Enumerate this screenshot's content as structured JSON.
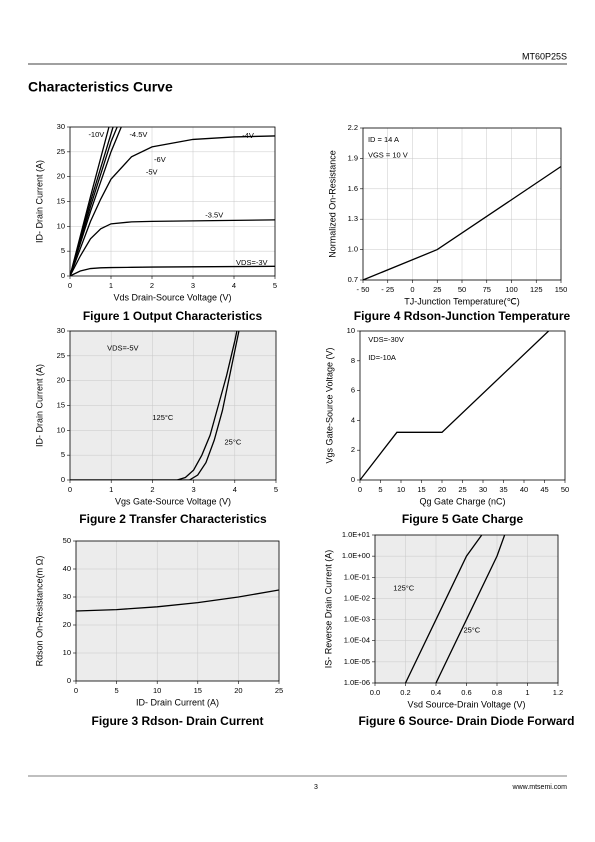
{
  "header": {
    "part": "MT60P25S",
    "section": "Characteristics Curve"
  },
  "footer": {
    "page": "3",
    "url": "www.mtsemi.com"
  },
  "chart_data": [
    {
      "type": "line",
      "title": "Figure 1 Output Characteristics",
      "xlabel": "Vds Drain-Source Voltage (V)",
      "ylabel": "ID- Drain Current (A)",
      "xlim": [
        0,
        5
      ],
      "ylim": [
        0,
        30
      ],
      "xticks": [
        0,
        1,
        2,
        3,
        4,
        5
      ],
      "yticks": [
        0,
        5,
        10,
        15,
        20,
        25,
        30
      ],
      "grid": true,
      "background": "#ffffff",
      "series": [
        {
          "name": "VDS=-3V",
          "color": "#000000",
          "x": [
            0,
            0.25,
            0.5,
            0.75,
            1,
            1.5,
            2,
            3,
            4,
            5
          ],
          "values": [
            0,
            1.0,
            1.5,
            1.65,
            1.7,
            1.75,
            1.8,
            1.85,
            1.9,
            1.95
          ]
        },
        {
          "name": "-3.5V",
          "color": "#000000",
          "x": [
            0,
            0.25,
            0.5,
            0.75,
            1,
            1.5,
            2,
            3,
            4,
            5
          ],
          "values": [
            0,
            4,
            7.5,
            9.5,
            10.5,
            10.9,
            11,
            11.1,
            11.2,
            11.3
          ]
        },
        {
          "name": "-4V",
          "color": "#000000",
          "x": [
            0,
            0.25,
            0.5,
            0.75,
            1,
            1.5,
            2,
            3,
            4,
            5
          ],
          "values": [
            0,
            5.5,
            11,
            15.5,
            19.5,
            24,
            26,
            27.5,
            28,
            28.2
          ]
        },
        {
          "name": "-4.5V",
          "color": "#000000",
          "x": [
            0,
            0.5,
            1,
            1.25
          ],
          "values": [
            0,
            13,
            25,
            30
          ]
        },
        {
          "name": "-5V",
          "color": "#000000",
          "x": [
            0,
            0.5,
            1,
            1.15
          ],
          "values": [
            0,
            14,
            27,
            30
          ]
        },
        {
          "name": "-6V",
          "color": "#000000",
          "x": [
            0,
            0.5,
            1.05
          ],
          "values": [
            0,
            15,
            30
          ]
        },
        {
          "name": "-10V",
          "color": "#000000",
          "x": [
            0,
            0.5,
            0.95
          ],
          "values": [
            0,
            16,
            30
          ]
        }
      ]
    },
    {
      "type": "line",
      "title": "Figure 4 Rdson-Junction Temperature",
      "xlabel": "TJ-Junction Temperature(℃)",
      "ylabel": "Normalized On-Resistance",
      "xlim": [
        -50,
        150
      ],
      "ylim": [
        0.7,
        2.2
      ],
      "xticks": [
        {
          "value": -50,
          "label": "- 50"
        },
        {
          "value": -25,
          "label": "- 25"
        },
        0,
        25,
        50,
        75,
        100,
        125,
        150
      ],
      "yticks": [
        0.7,
        {
          "value": 1.0,
          "label": "1.0"
        },
        1.3,
        1.6,
        1.9,
        2.2
      ],
      "grid": true,
      "background": "#ffffff",
      "annotations": [
        "ID = 14 A",
        "VGS = 10 V"
      ],
      "series": [
        {
          "color": "#000000",
          "x": [
            -50,
            25,
            150
          ],
          "values": [
            0.7,
            1.0,
            1.82
          ]
        }
      ]
    },
    {
      "type": "line",
      "title": "Figure 2 Transfer Characteristics",
      "xlabel": "Vgs Gate-Source Voltage (V)",
      "ylabel": "ID- Drain Current (A)",
      "xlim": [
        0,
        5
      ],
      "ylim": [
        0,
        30
      ],
      "xticks": [
        0,
        1,
        2,
        3,
        4,
        5
      ],
      "yticks": [
        0,
        5,
        10,
        15,
        20,
        25,
        30
      ],
      "grid": true,
      "background": "#ececec",
      "annotations": [
        "VDS=-5V"
      ],
      "series": [
        {
          "name": "125°C",
          "color": "#000000",
          "x": [
            0,
            2.6,
            2.8,
            3.0,
            3.2,
            3.4,
            3.6,
            3.8,
            4.0,
            4.05
          ],
          "values": [
            0,
            0,
            0.5,
            2,
            5,
            9,
            15,
            21,
            28,
            30
          ]
        },
        {
          "name": "25°C",
          "color": "#000000",
          "x": [
            0,
            2.9,
            3.1,
            3.3,
            3.5,
            3.7,
            3.9,
            4.1
          ],
          "values": [
            0,
            0,
            1,
            3.5,
            8,
            14,
            22,
            30
          ]
        }
      ]
    },
    {
      "type": "line",
      "title": "Figure 5 Gate Charge",
      "xlabel": "Qg Gate Charge (nC)",
      "ylabel": "Vgs Gate-Source Voltage (V)",
      "xlim": [
        0,
        50
      ],
      "ylim": [
        0,
        10
      ],
      "xticks": [
        0,
        5,
        10,
        15,
        20,
        25,
        30,
        35,
        40,
        45,
        50
      ],
      "yticks": [
        0,
        2,
        4,
        6,
        8,
        10
      ],
      "grid": false,
      "background": "#ffffff",
      "annotations": [
        "VDS=-30V",
        "ID=-10A"
      ],
      "series": [
        {
          "color": "#000000",
          "x": [
            0,
            9,
            20,
            46
          ],
          "values": [
            0,
            3.2,
            3.2,
            10
          ]
        }
      ]
    },
    {
      "type": "line",
      "title": "Figure 3 Rdson- Drain Current",
      "xlabel": "ID- Drain Current (A)",
      "ylabel": "Rdson On-Resistance(m Ω)",
      "xlim": [
        0,
        25
      ],
      "ylim": [
        0,
        50
      ],
      "xticks": [
        0,
        5,
        10,
        15,
        20,
        25
      ],
      "yticks": [
        0,
        10,
        20,
        30,
        40,
        50
      ],
      "grid": true,
      "background": "#ececec",
      "series": [
        {
          "color": "#000000",
          "x": [
            0,
            5,
            10,
            15,
            20,
            25
          ],
          "values": [
            25,
            25.5,
            26.5,
            28,
            30,
            32.5
          ]
        }
      ]
    },
    {
      "type": "line",
      "title": "Figure 6 Source- Drain Diode Forward",
      "xlabel": "Vsd Source-Drain Voltage (V)",
      "ylabel": "IS- Reverse Drain Current (A)",
      "xlim": [
        0,
        1.2
      ],
      "ylim": [
        1e-06,
        10
      ],
      "log_y": true,
      "xticks": [
        {
          "value": 0,
          "label": "0.0"
        },
        0.2,
        0.4,
        0.6,
        0.8,
        1,
        1.2
      ],
      "yticks": [
        {
          "value": 1e-06,
          "label": "1.0E-06"
        },
        {
          "value": 1e-05,
          "label": "1.0E-05"
        },
        {
          "value": 0.0001,
          "label": "1.0E-04"
        },
        {
          "value": 0.001,
          "label": "1.0E-03"
        },
        {
          "value": 0.01,
          "label": "1.0E-02"
        },
        {
          "value": 0.1,
          "label": "1.0E-01"
        },
        {
          "value": 1,
          "label": "1.0E+00"
        },
        {
          "value": 10,
          "label": "1.0E+01"
        }
      ],
      "grid": true,
      "background": "#ececec",
      "series": [
        {
          "name": "125°C",
          "color": "#000000",
          "x": [
            0.2,
            0.4,
            0.6,
            0.7
          ],
          "values": [
            1e-06,
            0.001,
            1,
            10
          ]
        },
        {
          "name": "25°C",
          "color": "#000000",
          "x": [
            0.4,
            0.6,
            0.8,
            0.85
          ],
          "values": [
            1e-06,
            0.001,
            1,
            10
          ]
        }
      ]
    }
  ]
}
